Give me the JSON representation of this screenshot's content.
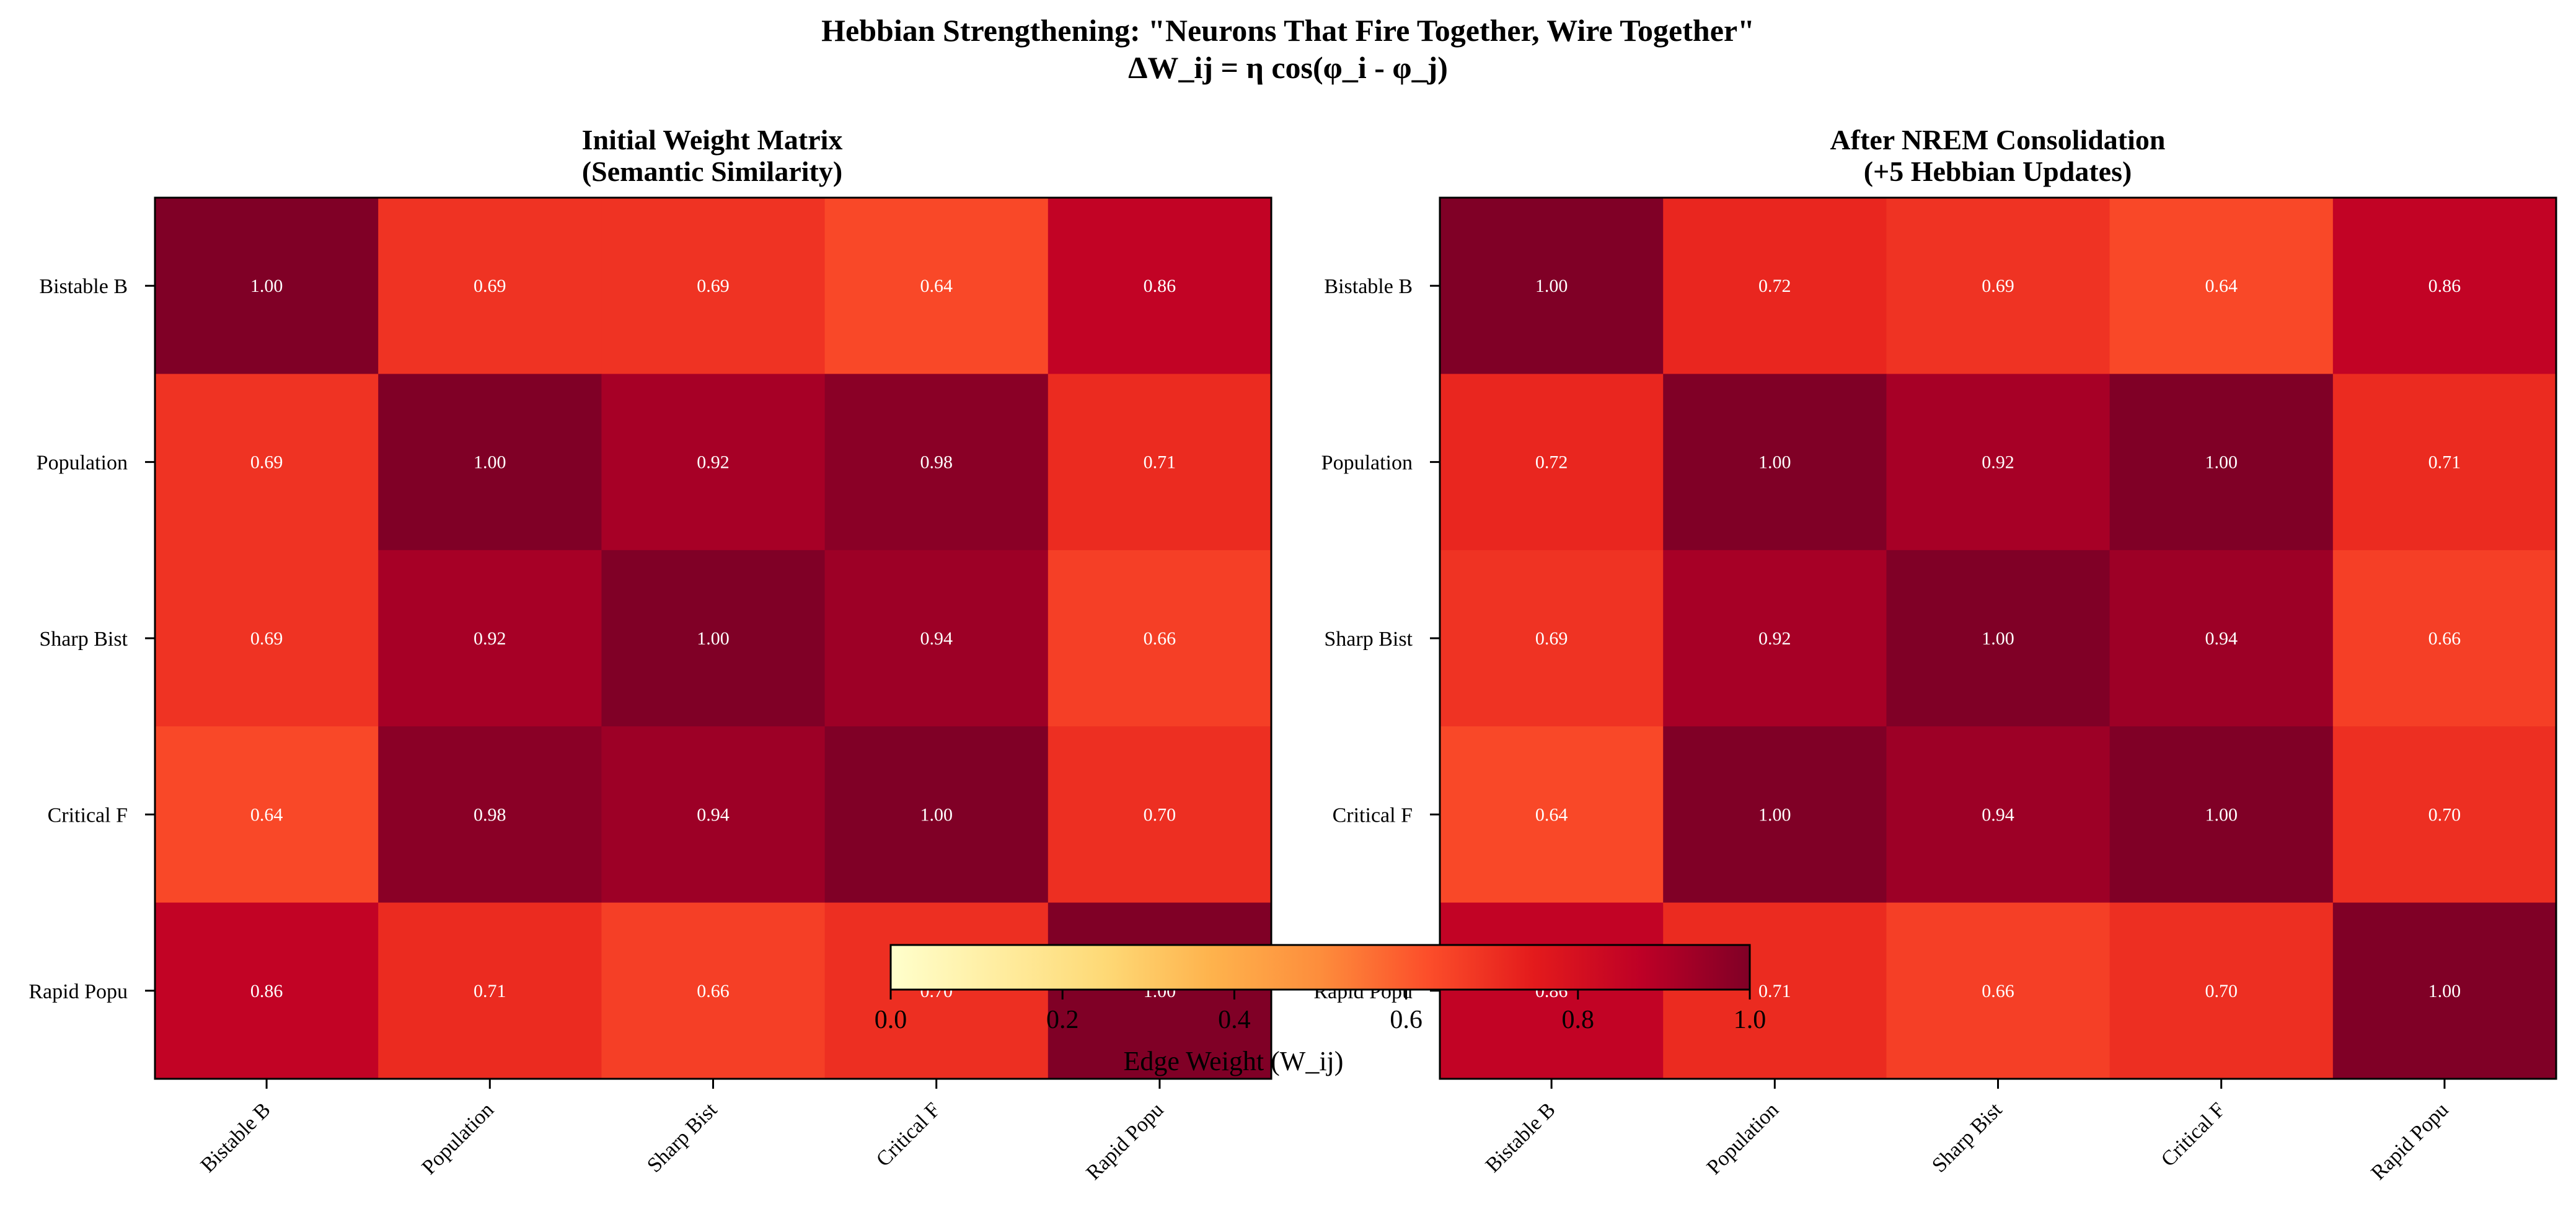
{
  "figure": {
    "title": "Hebbian Strengthening: \"Neurons That Fire Together, Wire Together\"",
    "subtitle": "ΔW_ij = η cos(φ_i - φ_j)"
  },
  "colorbar": {
    "label": "Edge Weight (W_ij)",
    "ticks": [
      "0.0",
      "0.2",
      "0.4",
      "0.6",
      "0.8",
      "1.0"
    ],
    "tick_values": [
      0.0,
      0.2,
      0.4,
      0.6,
      0.8,
      1.0
    ],
    "range": [
      0,
      1
    ],
    "colormap": "YlOrRd",
    "stops": [
      "#ffffcc",
      "#ffeda0",
      "#fed976",
      "#feb24c",
      "#fd8d3c",
      "#fc4e2a",
      "#e31a1c",
      "#bd0026",
      "#800026"
    ]
  },
  "chart_data": [
    {
      "type": "heatmap",
      "title": "Initial Weight Matrix",
      "subtitle": "(Semantic Similarity)",
      "row_labels": [
        "Bistable B",
        "Population",
        "Sharp Bist",
        "Critical F",
        "Rapid Popu"
      ],
      "col_labels": [
        "Bistable B",
        "Population",
        "Sharp Bist",
        "Critical F",
        "Rapid Popu"
      ],
      "values": [
        [
          1.0,
          0.69,
          0.69,
          0.64,
          0.86
        ],
        [
          0.69,
          1.0,
          0.92,
          0.98,
          0.71
        ],
        [
          0.69,
          0.92,
          1.0,
          0.94,
          0.66
        ],
        [
          0.64,
          0.98,
          0.94,
          1.0,
          0.7
        ],
        [
          0.86,
          0.71,
          0.66,
          0.7,
          1.0
        ]
      ],
      "value_labels": [
        [
          "1.00",
          "0.69",
          "0.69",
          "0.64",
          "0.86"
        ],
        [
          "0.69",
          "1.00",
          "0.92",
          "0.98",
          "0.71"
        ],
        [
          "0.69",
          "0.92",
          "1.00",
          "0.94",
          "0.66"
        ],
        [
          "0.64",
          "0.98",
          "0.94",
          "1.00",
          "0.70"
        ],
        [
          "0.86",
          "0.71",
          "0.66",
          "0.70",
          "1.00"
        ]
      ],
      "vmin": 0,
      "vmax": 1
    },
    {
      "type": "heatmap",
      "title": "After NREM Consolidation",
      "subtitle": "(+5 Hebbian Updates)",
      "row_labels": [
        "Bistable B",
        "Population",
        "Sharp Bist",
        "Critical F",
        "Rapid Popu"
      ],
      "col_labels": [
        "Bistable B",
        "Population",
        "Sharp Bist",
        "Critical F",
        "Rapid Popu"
      ],
      "values": [
        [
          1.0,
          0.72,
          0.69,
          0.64,
          0.86
        ],
        [
          0.72,
          1.0,
          0.92,
          1.0,
          0.71
        ],
        [
          0.69,
          0.92,
          1.0,
          0.94,
          0.66
        ],
        [
          0.64,
          1.0,
          0.94,
          1.0,
          0.7
        ],
        [
          0.86,
          0.71,
          0.66,
          0.7,
          1.0
        ]
      ],
      "value_labels": [
        [
          "1.00",
          "0.72",
          "0.69",
          "0.64",
          "0.86"
        ],
        [
          "0.72",
          "1.00",
          "0.92",
          "1.00",
          "0.71"
        ],
        [
          "0.69",
          "0.92",
          "1.00",
          "0.94",
          "0.66"
        ],
        [
          "0.64",
          "1.00",
          "0.94",
          "1.00",
          "0.70"
        ],
        [
          "0.86",
          "0.71",
          "0.66",
          "0.70",
          "1.00"
        ]
      ],
      "vmin": 0,
      "vmax": 1
    }
  ]
}
